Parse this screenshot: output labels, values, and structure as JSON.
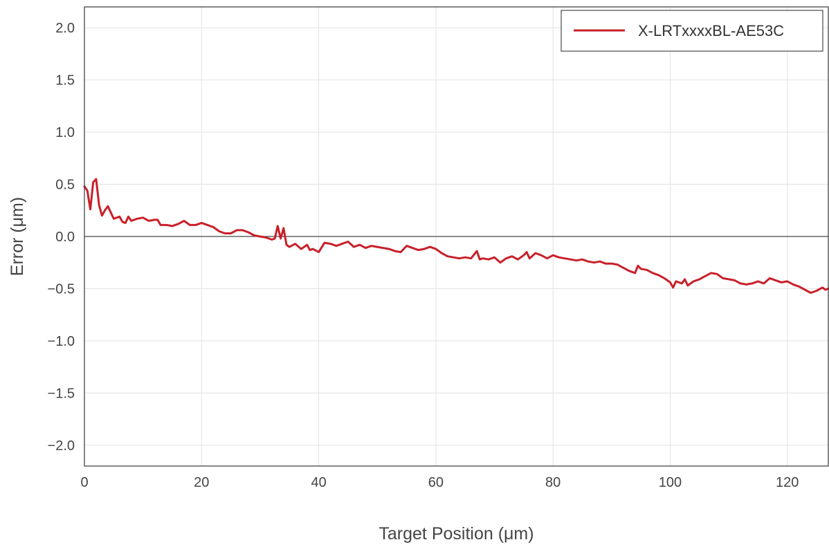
{
  "chart_data": {
    "type": "line",
    "title": "",
    "xlabel": "Target Position (μm)",
    "ylabel": "Error (μm)",
    "xlim": [
      0,
      127
    ],
    "ylim": [
      -2.2,
      2.2
    ],
    "x_ticks": [
      0,
      20,
      40,
      60,
      80,
      100,
      120
    ],
    "x_tick_labels": [
      "0",
      "20",
      "40",
      "60",
      "80",
      "100",
      "120"
    ],
    "y_ticks": [
      2.0,
      1.5,
      1.0,
      0.5,
      0.0,
      -0.5,
      -1.0,
      -1.5,
      -2.0
    ],
    "y_tick_labels": [
      "2.0",
      "1.5",
      "1.0",
      "0.5",
      "0.0",
      "−0.5",
      "−1.0",
      "−1.5",
      "−2.0"
    ],
    "grid": true,
    "zero_line": true,
    "legend_position": "top-right",
    "series": [
      {
        "name": "X-LRTxxxxBL-AE53C",
        "color": "#c8202a",
        "x": [
          0,
          0.5,
          1.0,
          1.5,
          2.0,
          2.5,
          3.0,
          3.5,
          4.0,
          5.0,
          6.0,
          6.5,
          7.0,
          7.5,
          8.0,
          9.0,
          10.0,
          11.0,
          12.0,
          12.5,
          13.0,
          14.0,
          15.0,
          16.0,
          17.0,
          18.0,
          19.0,
          20.0,
          21.0,
          22.0,
          23.0,
          24.0,
          25.0,
          26.0,
          27.0,
          28.0,
          29.0,
          30.0,
          31.0,
          32.0,
          32.5,
          33.0,
          33.5,
          34.0,
          34.5,
          35.0,
          36.0,
          37.0,
          38.0,
          38.5,
          39.0,
          40.0,
          41.0,
          42.0,
          43.0,
          44.0,
          45.0,
          46.0,
          47.0,
          48.0,
          49.0,
          50.0,
          51.0,
          52.0,
          53.0,
          54.0,
          55.0,
          56.0,
          57.0,
          58.0,
          59.0,
          60.0,
          61.0,
          62.0,
          63.0,
          64.0,
          65.0,
          66.0,
          67.0,
          67.5,
          68.0,
          69.0,
          70.0,
          71.0,
          72.0,
          73.0,
          74.0,
          75.0,
          75.5,
          76.0,
          77.0,
          78.0,
          79.0,
          80.0,
          81.0,
          82.0,
          83.0,
          84.0,
          85.0,
          86.0,
          87.0,
          88.0,
          89.0,
          90.0,
          91.0,
          92.0,
          93.0,
          94.0,
          94.5,
          95.0,
          96.0,
          97.0,
          98.0,
          99.0,
          100.0,
          100.5,
          101.0,
          102.0,
          102.5,
          103.0,
          104.0,
          105.0,
          106.0,
          107.0,
          108.0,
          109.0,
          110.0,
          111.0,
          112.0,
          113.0,
          114.0,
          115.0,
          116.0,
          117.0,
          118.0,
          119.0,
          120.0,
          121.0,
          122.0,
          123.0,
          124.0,
          125.0,
          126.0,
          126.5,
          127.0
        ],
        "y": [
          0.48,
          0.44,
          0.26,
          0.52,
          0.55,
          0.3,
          0.2,
          0.25,
          0.29,
          0.17,
          0.19,
          0.14,
          0.13,
          0.19,
          0.15,
          0.17,
          0.18,
          0.15,
          0.16,
          0.16,
          0.11,
          0.11,
          0.1,
          0.12,
          0.15,
          0.11,
          0.11,
          0.13,
          0.11,
          0.09,
          0.05,
          0.03,
          0.03,
          0.06,
          0.06,
          0.04,
          0.01,
          0.0,
          -0.01,
          -0.03,
          -0.02,
          0.1,
          -0.02,
          0.08,
          -0.08,
          -0.1,
          -0.07,
          -0.12,
          -0.08,
          -0.13,
          -0.12,
          -0.15,
          -0.06,
          -0.07,
          -0.09,
          -0.07,
          -0.05,
          -0.1,
          -0.08,
          -0.11,
          -0.09,
          -0.1,
          -0.11,
          -0.12,
          -0.14,
          -0.15,
          -0.09,
          -0.11,
          -0.13,
          -0.12,
          -0.1,
          -0.12,
          -0.16,
          -0.19,
          -0.2,
          -0.21,
          -0.2,
          -0.21,
          -0.14,
          -0.22,
          -0.21,
          -0.22,
          -0.2,
          -0.25,
          -0.21,
          -0.19,
          -0.22,
          -0.18,
          -0.15,
          -0.21,
          -0.16,
          -0.18,
          -0.21,
          -0.18,
          -0.2,
          -0.21,
          -0.22,
          -0.23,
          -0.22,
          -0.24,
          -0.25,
          -0.24,
          -0.26,
          -0.26,
          -0.27,
          -0.3,
          -0.33,
          -0.35,
          -0.28,
          -0.31,
          -0.32,
          -0.35,
          -0.37,
          -0.4,
          -0.44,
          -0.49,
          -0.43,
          -0.45,
          -0.41,
          -0.47,
          -0.43,
          -0.41,
          -0.38,
          -0.35,
          -0.36,
          -0.4,
          -0.41,
          -0.42,
          -0.45,
          -0.46,
          -0.45,
          -0.43,
          -0.45,
          -0.4,
          -0.42,
          -0.44,
          -0.43,
          -0.46,
          -0.48,
          -0.51,
          -0.54,
          -0.52,
          -0.49,
          -0.51,
          -0.5
        ]
      }
    ]
  }
}
